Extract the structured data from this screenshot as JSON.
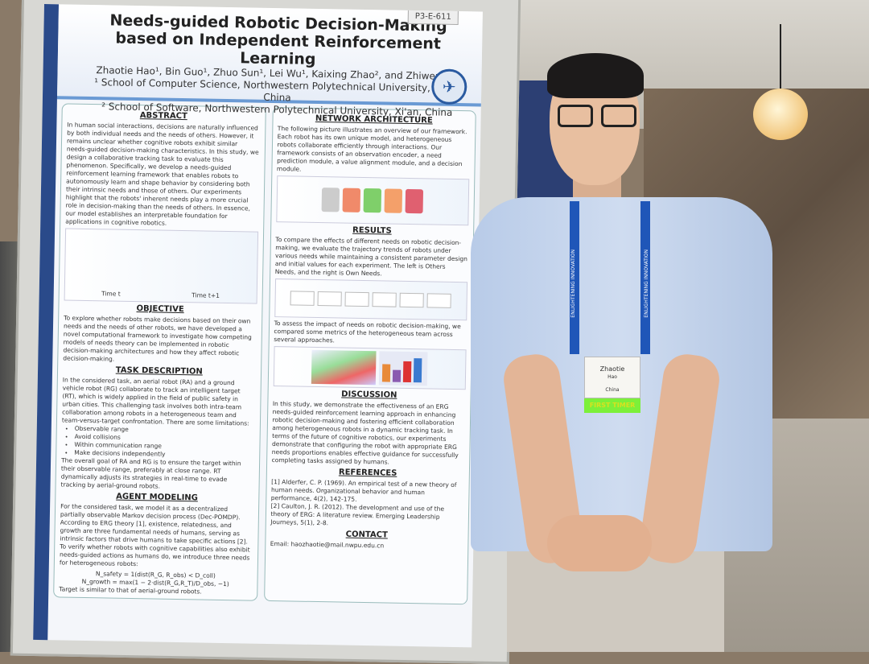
{
  "poster": {
    "id": "P3-E-611",
    "title": "Needs-guided Robotic Decision-Making based on Independent Reinforcement Learning",
    "authors": "Zhaotie Hao¹, Bin Guo¹, Zhuo Sun¹, Lei Wu¹, Kaixing Zhao², and Zhiwen Yu¹",
    "affiliation_1": "¹ School of Computer Science, Northwestern Polytechnical University, Xi'an, China",
    "affiliation_2": "² School of Software, Northwestern Polytechnical University, Xi'an, China",
    "left_column": {
      "abstract_heading": "ABSTRACT",
      "abstract_text": "In human social interactions, decisions are naturally influenced by both individual needs and the needs of others. However, it remains unclear whether cognitive robots exhibit similar needs-guided decision-making characteristics. In this study, we design a collaborative tracking task to evaluate this phenomenon. Specifically, we develop a needs-guided reinforcement learning framework that enables robots to autonomously learn and shape behavior by considering both their intrinsic needs and those of others. Our experiments highlight that the robots' inherent needs play a more crucial role in decision-making than the needs of others. In essence, our model establishes an interpretable foundation for applications in cognitive robotics.",
      "figure_labels": [
        "Time t",
        "Time t+1"
      ],
      "objective_heading": "OBJECTIVE",
      "objective_text": "To explore whether robots make decisions based on their own needs and the needs of other robots, we have developed a novel computational framework to investigate how competing models of needs theory can be implemented in robotic decision-making architectures and how they affect robotic decision-making.",
      "task_heading": "TASK DESCRIPTION",
      "task_text": "In the considered task, an aerial robot (RA) and a ground vehicle robot (RG) collaborate to track an intelligent target (RT), which is widely applied in the field of public safety in urban cities. This challenging task involves both intra-team collaboration among robots in a heterogeneous team and team-versus-target confrontation. There are some limitations:",
      "task_limits": [
        "Observable range",
        "Avoid collisions",
        "Within communication range",
        "Make decisions independently"
      ],
      "task_text_2": "The overall goal of RA and RG is to ensure the target within their observable range, preferably at close range. RT dynamically adjusts its strategies in real-time to evade tracking by aerial-ground robots.",
      "agent_heading": "AGENT MODELING",
      "agent_text": "For the considered task, we model it as a decentralized partially observable Markov decision process (Dec-POMDP). According to ERG theory [1], existence, relatedness, and growth are three fundamental needs of humans, serving as intrinsic factors that drive humans to take specific actions [2]. To verify whether robots with cognitive capabilities also exhibit needs-guided actions as humans do, we introduce three needs for heterogeneous robots:",
      "formula_1": "N_safety = 1(dist(R_G, R_obs) < D_coll)",
      "formula_2": "N_growth = max(1 − 2·dist(R_G,R_T)/D_obs, −1)",
      "footer_text": "Target is similar to that of aerial-ground robots."
    },
    "right_column": {
      "network_heading": "NETWORK ARCHITECTURE",
      "network_text": "The following picture illustrates an overview of our framework. Each robot has its own unique model, and heterogeneous robots collaborate efficiently through interactions. Our framework consists of an observation encoder, a need prediction module, a value alignment module, and a decision module.",
      "results_heading": "RESULTS",
      "results_text": "To compare the effects of different needs on robotic decision-making, we evaluate the trajectory trends of robots under various needs while maintaining a consistent parameter design and initial values for each experiment. The left is Others Needs, and the right is Own Needs.",
      "results_text_2": "To assess the impact of needs on robotic decision-making, we compared some metrics of the heterogeneous team across several approaches.",
      "discussion_heading": "DISCUSSION",
      "discussion_text": "In this study, we demonstrate the effectiveness of an ERG needs-guided reinforcement learning approach in enhancing robotic decision-making and fostering efficient collaboration among heterogeneous robots in a dynamic tracking task. In terms of the future of cognitive robotics, our experiments demonstrate that configuring the robot with appropriate ERG needs proportions enables effective guidance for successfully completing tasks assigned by humans.",
      "references_heading": "REFERENCES",
      "references": [
        "[1] Alderfer, C. P. (1969). An empirical test of a new theory of human needs. Organizational behavior and human performance, 4(2), 142-175.",
        "[2] Caulton, J. R. (2012). The development and use of the theory of ERG: A literature review. Emerging Leadership Journeys, 5(1), 2-8."
      ],
      "contact_heading": "CONTACT",
      "contact_text": "Email: haozhaotie@mail.nwpu.edu.cn"
    }
  },
  "badge": {
    "first_name": "Zhaotie",
    "last_name": "Hao",
    "country": "China",
    "ribbon": "FIRST TIMER"
  },
  "lanyard": {
    "text": "ENLIGHTENING INNOVATION"
  },
  "colors": {
    "poster_border": "#2a4a8a",
    "lanyard": "#1f56b8",
    "ribbon": "#7cf03a",
    "shirt": "#c4d4ec"
  }
}
